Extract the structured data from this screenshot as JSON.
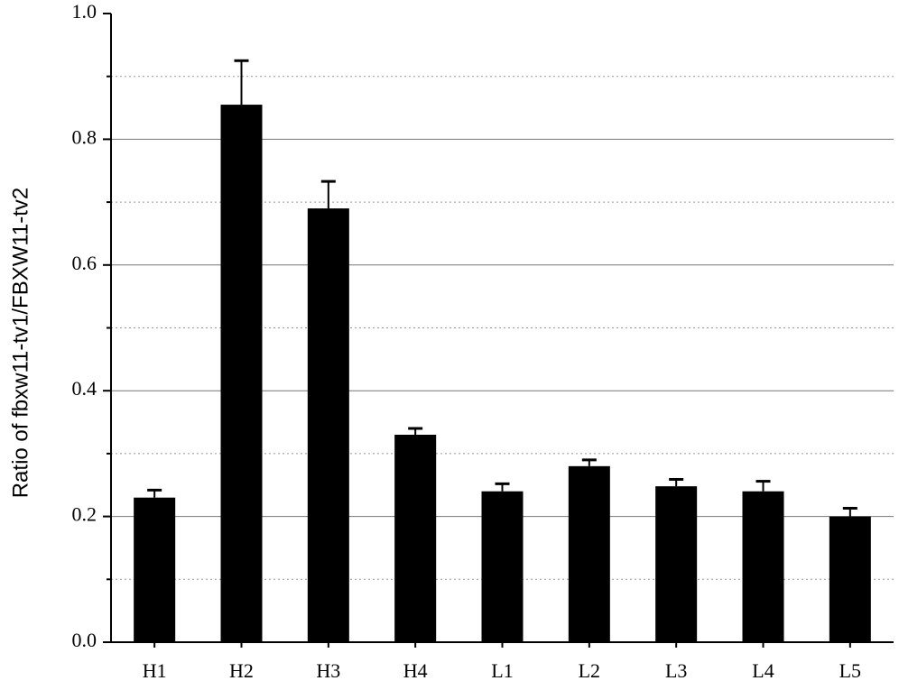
{
  "chart_data": {
    "type": "bar",
    "y_label": "Ratio of fbxw11-tv1/FBXW11-tv2",
    "categories": [
      "H1",
      "H2",
      "H3",
      "H4",
      "L1",
      "L2",
      "L3",
      "L4",
      "L5"
    ],
    "values": [
      0.23,
      0.855,
      0.69,
      0.33,
      0.24,
      0.28,
      0.248,
      0.24,
      0.2
    ],
    "errors": [
      0.012,
      0.07,
      0.043,
      0.01,
      0.012,
      0.01,
      0.011,
      0.016,
      0.013
    ],
    "color": "#000000",
    "ylim": [
      0,
      1
    ],
    "yticks": [
      {
        "value": 0,
        "label": "0.0"
      },
      0.2,
      0.4,
      0.6,
      0.8,
      {
        "value": 1,
        "label": "1.0"
      }
    ],
    "minor_yticks": [
      0.1,
      0.3,
      0.5,
      0.7,
      0.9
    ],
    "grid": true
  }
}
